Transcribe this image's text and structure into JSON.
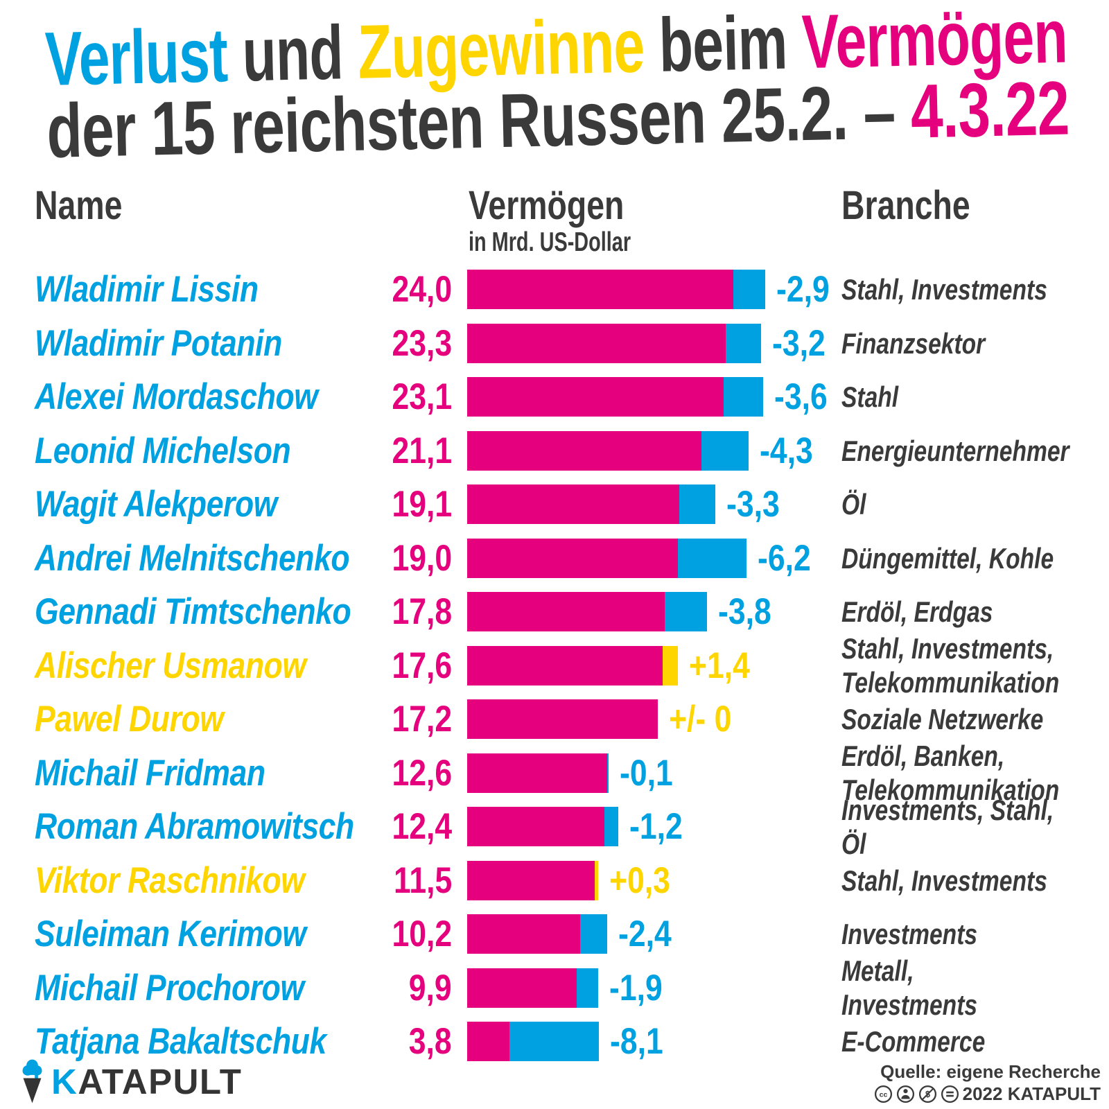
{
  "colors": {
    "magenta": "#e5007d",
    "blue": "#00a1e0",
    "yellow": "#ffd500",
    "dark": "#3a3a3a"
  },
  "title": {
    "lines": [
      {
        "parts": [
          {
            "text": "Verlust",
            "color": "blue"
          },
          {
            "text": " und ",
            "color": "dark"
          },
          {
            "text": "Zugewinne",
            "color": "yellow"
          },
          {
            "text": " beim ",
            "color": "dark"
          },
          {
            "text": "Vermögen",
            "color": "magenta"
          }
        ]
      },
      {
        "parts": [
          {
            "text": "der 15 reichsten Russen 25.2. – ",
            "color": "dark"
          },
          {
            "text": "4.3.22",
            "color": "magenta"
          }
        ]
      }
    ]
  },
  "columns": {
    "name": "Name",
    "wealth": "Vermögen",
    "wealth_unit": "in Mrd. US-Dollar",
    "industry": "Branche"
  },
  "chart_data": {
    "type": "bar",
    "orientation": "horizontal",
    "unit": "Mrd. US-Dollar",
    "title": "Verlust und Zugewinne beim Vermögen der 15 reichsten Russen 25.2. – 4.3.22",
    "period": "25.2. – 4.3.22",
    "rows": [
      {
        "name": "Wladimir Lissin",
        "wealth": 24.0,
        "wealth_label": "24,0",
        "change": -2.9,
        "change_label": "-2,9",
        "industry_lines": [
          "Stahl, Investments"
        ],
        "highlight": "blue"
      },
      {
        "name": "Wladimir Potanin",
        "wealth": 23.3,
        "wealth_label": "23,3",
        "change": -3.2,
        "change_label": "-3,2",
        "industry_lines": [
          "Finanzsektor"
        ],
        "highlight": "blue"
      },
      {
        "name": "Alexei Mordaschow",
        "wealth": 23.1,
        "wealth_label": "23,1",
        "change": -3.6,
        "change_label": "-3,6",
        "industry_lines": [
          "Stahl"
        ],
        "highlight": "blue"
      },
      {
        "name": "Leonid Michelson",
        "wealth": 21.1,
        "wealth_label": "21,1",
        "change": -4.3,
        "change_label": "-4,3",
        "industry_lines": [
          "Energieunternehmer"
        ],
        "highlight": "blue"
      },
      {
        "name": "Wagit Alekperow",
        "wealth": 19.1,
        "wealth_label": "19,1",
        "change": -3.3,
        "change_label": "-3,3",
        "industry_lines": [
          "Öl"
        ],
        "highlight": "blue"
      },
      {
        "name": "Andrei Melnitschenko",
        "wealth": 19.0,
        "wealth_label": "19,0",
        "change": -6.2,
        "change_label": "-6,2",
        "industry_lines": [
          "Düngemittel, Kohle"
        ],
        "highlight": "blue"
      },
      {
        "name": "Gennadi Timtschenko",
        "wealth": 17.8,
        "wealth_label": "17,8",
        "change": -3.8,
        "change_label": "-3,8",
        "industry_lines": [
          "Erdöl, Erdgas"
        ],
        "highlight": "blue"
      },
      {
        "name": "Alischer Usmanow",
        "wealth": 17.6,
        "wealth_label": "17,6",
        "change": 1.4,
        "change_label": "+1,4",
        "industry_lines": [
          "Stahl, Investments,",
          "Telekommunikation"
        ],
        "highlight": "yellow"
      },
      {
        "name": "Pawel Durow",
        "wealth": 17.2,
        "wealth_label": "17,2",
        "change": 0,
        "change_label": "+/- 0",
        "industry_lines": [
          "Soziale Netzwerke"
        ],
        "highlight": "yellow"
      },
      {
        "name": "Michail Fridman",
        "wealth": 12.6,
        "wealth_label": "12,6",
        "change": -0.1,
        "change_label": "-0,1",
        "industry_lines": [
          "Erdöl, Banken,",
          "Telekommunikation"
        ],
        "highlight": "blue"
      },
      {
        "name": "Roman Abramowitsch",
        "wealth": 12.4,
        "wealth_label": "12,4",
        "change": -1.2,
        "change_label": "-1,2",
        "industry_lines": [
          "Investments, Stahl, Öl"
        ],
        "highlight": "blue"
      },
      {
        "name": "Viktor Raschnikow",
        "wealth": 11.5,
        "wealth_label": "11,5",
        "change": 0.3,
        "change_label": "+0,3",
        "industry_lines": [
          "Stahl, Investments"
        ],
        "highlight": "yellow"
      },
      {
        "name": "Suleiman Kerimow",
        "wealth": 10.2,
        "wealth_label": "10,2",
        "change": -2.4,
        "change_label": "-2,4",
        "industry_lines": [
          "Investments"
        ],
        "highlight": "blue"
      },
      {
        "name": "Michail Prochorow",
        "wealth": 9.9,
        "wealth_label": "9,9",
        "change": -1.9,
        "change_label": "-1,9",
        "industry_lines": [
          "Metall, Investments"
        ],
        "highlight": "blue"
      },
      {
        "name": "Tatjana Bakaltschuk",
        "wealth": 3.8,
        "wealth_label": "3,8",
        "change": -8.1,
        "change_label": "-8,1",
        "industry_lines": [
          "E-Commerce"
        ],
        "highlight": "blue"
      }
    ]
  },
  "footer": {
    "logo_text": "KATAPULT",
    "source": "Quelle: eigene Recherche",
    "license": "2022 KATAPULT"
  }
}
